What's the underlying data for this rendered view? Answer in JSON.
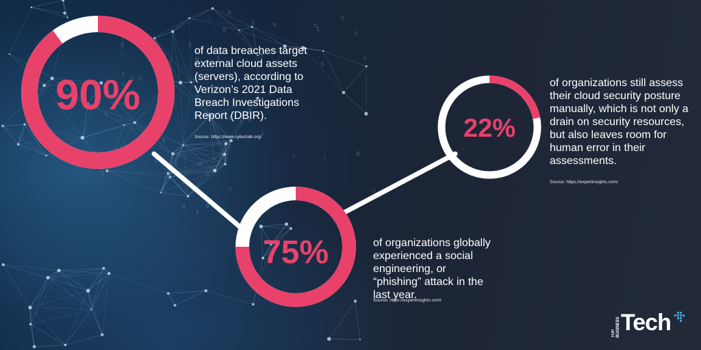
{
  "chart_data": {
    "type": "donut",
    "items": [
      {
        "value": 90,
        "label": "90%",
        "text": "of data breaches target external cloud assets (servers), according to Verizon’s 2021 Data Breach Investigations Report (DBIR).",
        "source": "Source: https://www.cybertalk.org/"
      },
      {
        "value": 75,
        "label": "75%",
        "text": "of organizations globally experienced a social engineering, or “phishing” attack in the last year.",
        "source": "Source: https://expertinsights.com/"
      },
      {
        "value": 22,
        "label": "22%",
        "text": "of organizations still assess their cloud security posture manually, which is not only a drain on security resources, but also leaves room for human error in their assessments.",
        "source": "Source: https://expertinsights.com/"
      }
    ],
    "colors": {
      "filled": "#e8426a",
      "track": "#ffffff",
      "connector": "#ffffff"
    }
  },
  "logo": {
    "top": "TOP BUSINESS",
    "word": "Tech"
  }
}
